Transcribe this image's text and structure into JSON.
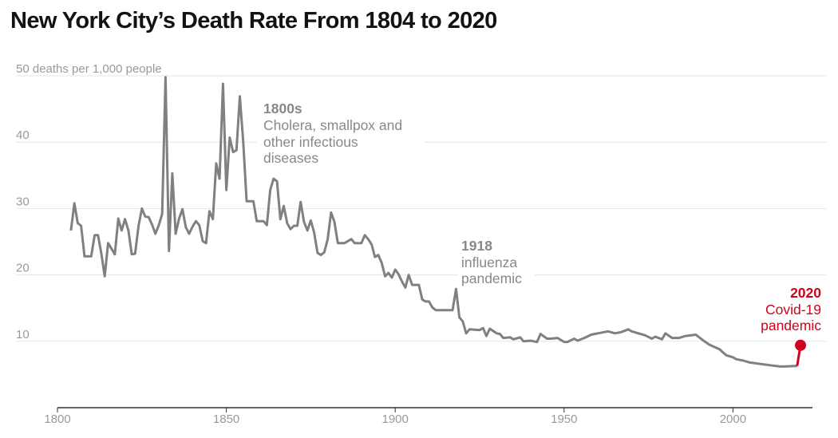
{
  "title": "New York City’s Death Rate From 1804 to 2020",
  "chart_data": {
    "type": "line",
    "title": "New York City’s Death Rate From 1804 to 2020",
    "ylabel": "50 deaths per 1,000 people",
    "xlabel": "",
    "xlim": [
      1800,
      2022
    ],
    "ylim": [
      0,
      50
    ],
    "xticks": [
      1800,
      1850,
      1900,
      1950,
      2000
    ],
    "yticks": [
      10,
      20,
      30,
      40,
      50
    ],
    "ytick_labels": [
      "10",
      "20",
      "30",
      "40",
      "50 deaths per 1,000 people"
    ],
    "grid": true,
    "colors": {
      "line": "#808082",
      "highlight": "#d0021b",
      "grid": "#e6e6e6",
      "axis": "#333333"
    },
    "series": [
      {
        "name": "Deaths per 1,000 people",
        "x": [
          1804,
          1805,
          1806,
          1807,
          1808,
          1810,
          1811,
          1812,
          1813,
          1814,
          1815,
          1817,
          1818,
          1819,
          1820,
          1821,
          1822,
          1823,
          1824,
          1825,
          1826,
          1827,
          1828,
          1829,
          1830,
          1831,
          1832,
          1833,
          1834,
          1835,
          1836,
          1837,
          1838,
          1839,
          1840,
          1841,
          1842,
          1843,
          1844,
          1845,
          1846,
          1847,
          1848,
          1849,
          1850,
          1851,
          1852,
          1853,
          1854,
          1855,
          1856,
          1857,
          1858,
          1859,
          1860,
          1861,
          1862,
          1863,
          1864,
          1865,
          1866,
          1867,
          1868,
          1869,
          1870,
          1871,
          1872,
          1873,
          1874,
          1875,
          1876,
          1877,
          1878,
          1879,
          1880,
          1881,
          1882,
          1883,
          1885,
          1886,
          1887,
          1888,
          1890,
          1891,
          1892,
          1893,
          1894,
          1895,
          1896,
          1897,
          1898,
          1899,
          1900,
          1901,
          1902,
          1903,
          1904,
          1905,
          1907,
          1908,
          1909,
          1910,
          1911,
          1912,
          1917,
          1918,
          1919,
          1920,
          1921,
          1922,
          1925,
          1926,
          1927,
          1928,
          1930,
          1931,
          1932,
          1934,
          1935,
          1937,
          1938,
          1940,
          1942,
          1943,
          1945,
          1946,
          1948,
          1950,
          1951,
          1953,
          1954,
          1956,
          1958,
          1959,
          1962,
          1963,
          1965,
          1967,
          1969,
          1970,
          1972,
          1974,
          1976,
          1977,
          1979,
          1980,
          1982,
          1984,
          1986,
          1989,
          1991,
          1993,
          1996,
          1998,
          2000,
          2001,
          2003,
          2005,
          2008,
          2011,
          2014,
          2015,
          2019,
          2020
        ],
        "y": [
          26.7,
          30.8,
          27.8,
          27.4,
          22.8,
          22.8,
          26,
          26,
          23.2,
          19.8,
          24.8,
          23.1,
          28.5,
          26.7,
          28.4,
          26.7,
          23.1,
          23.2,
          27.4,
          30.0,
          28.8,
          28.7,
          27.6,
          26.2,
          27.5,
          29.2,
          49.8,
          23.6,
          35.3,
          26.2,
          28.5,
          29.9,
          27.2,
          26.2,
          27.3,
          28.1,
          27.5,
          25.1,
          24.8,
          29.6,
          28.4,
          36.8,
          34.5,
          48.8,
          32.8,
          40.7,
          38.5,
          38.8,
          46.9,
          40,
          31.1,
          31.1,
          31.1,
          28.1,
          28.1,
          28.1,
          27.5,
          32.8,
          34.5,
          34.1,
          28.4,
          30.4,
          27.8,
          26.9,
          27.4,
          27.4,
          31.0,
          28,
          26.7,
          28.2,
          26.4,
          23.3,
          23,
          23.4,
          25.4,
          29.4,
          28,
          24.8,
          24.8,
          25.1,
          25.4,
          24.8,
          24.8,
          26,
          25.4,
          24.6,
          22.7,
          23,
          21.8,
          19.8,
          20.3,
          19.6,
          20.8,
          20.1,
          19.0,
          18.1,
          20.0,
          18.5,
          18.5,
          16.3,
          16.0,
          16.0,
          15.1,
          14.7,
          14.7,
          17.9,
          13.6,
          13.0,
          11.2,
          11.8,
          11.7,
          12.0,
          10.8,
          11.9,
          11.2,
          11.1,
          10.5,
          10.6,
          10.3,
          10.6,
          10.0,
          10.1,
          9.9,
          11.1,
          10.4,
          10.4,
          10.5,
          9.9,
          9.9,
          10.4,
          10.1,
          10.5,
          11.0,
          11.1,
          11.4,
          11.5,
          11.2,
          11.4,
          11.8,
          11.5,
          11.2,
          10.9,
          10.4,
          10.7,
          10.3,
          11.2,
          10.5,
          10.5,
          10.8,
          11.0,
          10.2,
          9.5,
          8.8,
          7.9,
          7.6,
          7.3,
          7.1,
          6.8,
          6.6,
          6.4,
          6.2,
          6.2,
          6.3,
          9.4
        ]
      }
    ],
    "annotations": [
      {
        "title": "1800s",
        "lines": [
          "Cholera, smallpox and",
          "other infectious",
          "diseases"
        ]
      },
      {
        "title": "1918",
        "lines": [
          "influenza",
          "pandemic"
        ]
      },
      {
        "title": "2020",
        "lines": [
          "Covid-19",
          "pandemic"
        ],
        "highlight": true
      }
    ]
  }
}
